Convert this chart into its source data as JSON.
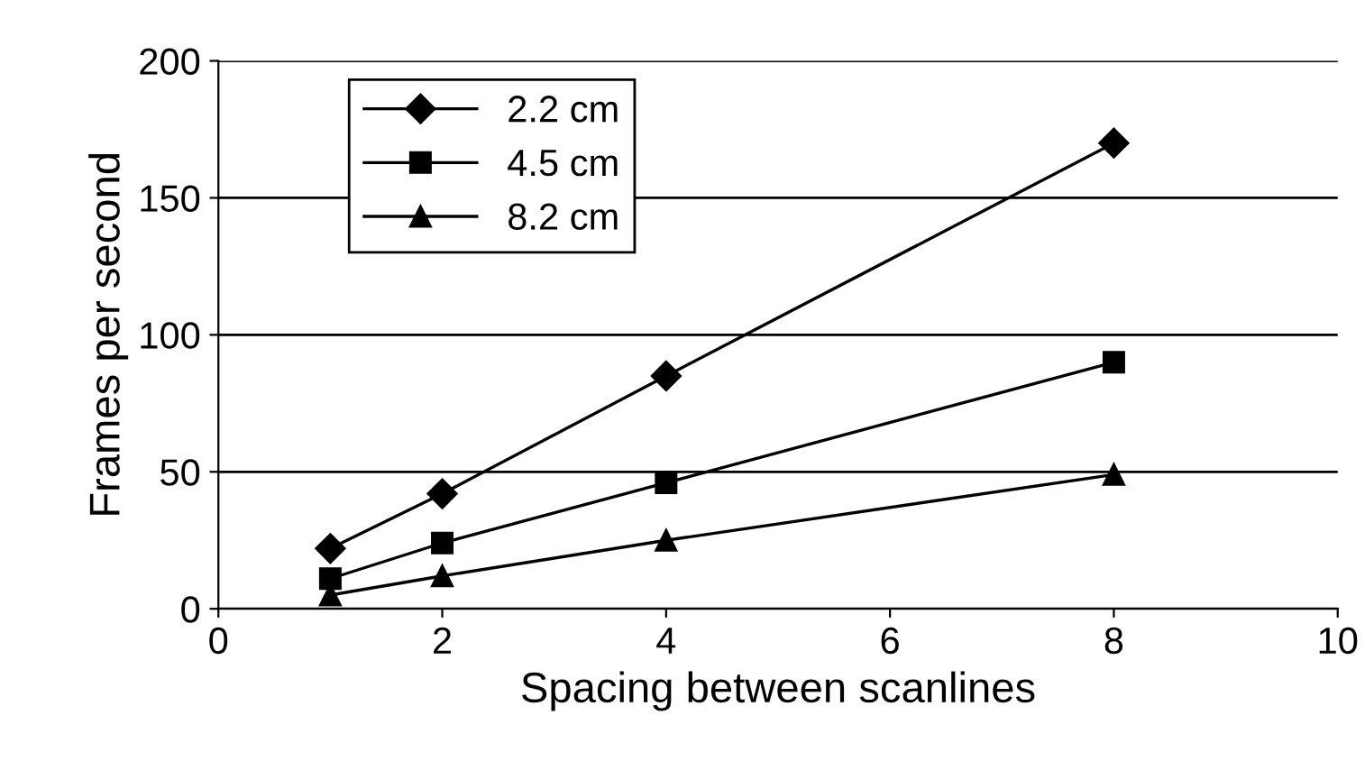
{
  "chart_data": {
    "type": "line",
    "xlabel": "Spacing between scanlines",
    "ylabel": "Frames per second",
    "x": [
      1,
      2,
      4,
      8
    ],
    "series": [
      {
        "name": "2.2 cm",
        "color": "#000000",
        "marker": "diamond",
        "values": [
          22,
          42,
          85,
          170
        ]
      },
      {
        "name": "4.5 cm",
        "color": "#000000",
        "marker": "square",
        "values": [
          11,
          24,
          46,
          90
        ]
      },
      {
        "name": "8.2 cm",
        "color": "#000000",
        "marker": "triangle",
        "values": [
          5,
          12,
          25,
          49
        ]
      }
    ],
    "xlim": [
      0,
      10
    ],
    "xticks": [
      0,
      2,
      4,
      6,
      8,
      10
    ],
    "ylim": [
      0,
      200
    ],
    "yticks": [
      0,
      50,
      100,
      150,
      200
    ],
    "grid": "y",
    "legend": "top left",
    "line_style": "solid"
  }
}
